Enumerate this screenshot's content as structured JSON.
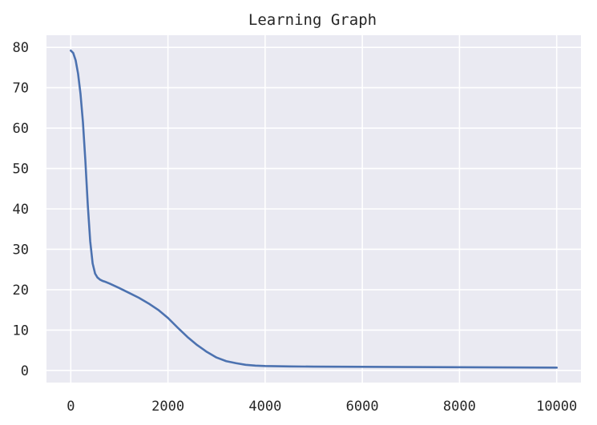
{
  "chart_data": {
    "type": "line",
    "title": "Learning Graph",
    "xlabel": "",
    "ylabel": "",
    "xlim": [
      -500,
      10500
    ],
    "ylim": [
      -3,
      83
    ],
    "x_ticks": [
      0,
      2000,
      4000,
      6000,
      8000,
      10000
    ],
    "y_ticks": [
      0,
      10,
      20,
      30,
      40,
      50,
      60,
      70,
      80
    ],
    "grid": true,
    "legend": "none",
    "colors": {
      "background": "#eaeaf2",
      "grid": "#ffffff",
      "line": "#4c72b0",
      "text": "#262626"
    },
    "series": [
      {
        "x": [
          0,
          50,
          100,
          150,
          200,
          250,
          300,
          350,
          400,
          450,
          500,
          550,
          600,
          650,
          700,
          800,
          1000,
          1200,
          1400,
          1600,
          1800,
          2000,
          2200,
          2400,
          2600,
          2800,
          3000,
          3200,
          3400,
          3600,
          3800,
          4000,
          4500,
          5000,
          6000,
          7000,
          8000,
          9000,
          10000
        ],
        "y": [
          79.2,
          78.6,
          76.8,
          73.5,
          68.5,
          61.5,
          52.0,
          41.0,
          32.0,
          26.5,
          24.0,
          23.0,
          22.5,
          22.2,
          22.0,
          21.5,
          20.4,
          19.2,
          18.0,
          16.6,
          15.0,
          13.0,
          10.6,
          8.3,
          6.3,
          4.6,
          3.2,
          2.3,
          1.8,
          1.4,
          1.2,
          1.1,
          1.0,
          0.95,
          0.9,
          0.85,
          0.8,
          0.75,
          0.7
        ]
      }
    ]
  }
}
